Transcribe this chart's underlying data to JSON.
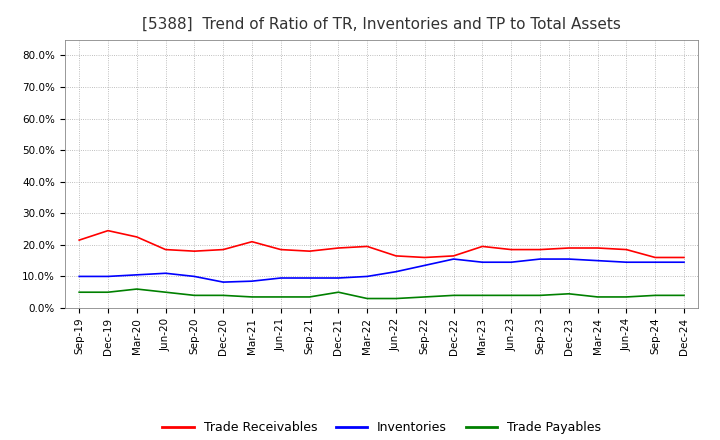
{
  "title": "[5388]  Trend of Ratio of TR, Inventories and TP to Total Assets",
  "labels": [
    "Sep-19",
    "Dec-19",
    "Mar-20",
    "Jun-20",
    "Sep-20",
    "Dec-20",
    "Mar-21",
    "Jun-21",
    "Sep-21",
    "Dec-21",
    "Mar-22",
    "Jun-22",
    "Sep-22",
    "Dec-22",
    "Mar-23",
    "Jun-23",
    "Sep-23",
    "Dec-23",
    "Mar-24",
    "Jun-24",
    "Sep-24",
    "Dec-24"
  ],
  "trade_receivables": [
    0.215,
    0.245,
    0.225,
    0.185,
    0.18,
    0.185,
    0.21,
    0.185,
    0.18,
    0.19,
    0.195,
    0.165,
    0.16,
    0.165,
    0.195,
    0.185,
    0.185,
    0.19,
    0.19,
    0.185,
    0.16,
    0.16
  ],
  "inventories": [
    0.1,
    0.1,
    0.105,
    0.11,
    0.1,
    0.082,
    0.085,
    0.095,
    0.095,
    0.095,
    0.1,
    0.115,
    0.135,
    0.155,
    0.145,
    0.145,
    0.155,
    0.155,
    0.15,
    0.145,
    0.145,
    0.145
  ],
  "trade_payables": [
    0.05,
    0.05,
    0.06,
    0.05,
    0.04,
    0.04,
    0.035,
    0.035,
    0.035,
    0.05,
    0.03,
    0.03,
    0.035,
    0.04,
    0.04,
    0.04,
    0.04,
    0.045,
    0.035,
    0.035,
    0.04,
    0.04
  ],
  "tr_color": "#ff0000",
  "inv_color": "#0000ff",
  "tp_color": "#008000",
  "ylim": [
    0.0,
    0.85
  ],
  "yticks": [
    0.0,
    0.1,
    0.2,
    0.3,
    0.4,
    0.5,
    0.6,
    0.7,
    0.8
  ],
  "ytick_labels": [
    "0.0%",
    "10.0%",
    "20.0%",
    "30.0%",
    "40.0%",
    "50.0%",
    "60.0%",
    "70.0%",
    "80.0%"
  ],
  "legend_labels": [
    "Trade Receivables",
    "Inventories",
    "Trade Payables"
  ],
  "background_color": "#ffffff",
  "grid_color": "#aaaaaa",
  "title_fontsize": 11,
  "tick_fontsize": 7.5,
  "legend_fontsize": 9
}
